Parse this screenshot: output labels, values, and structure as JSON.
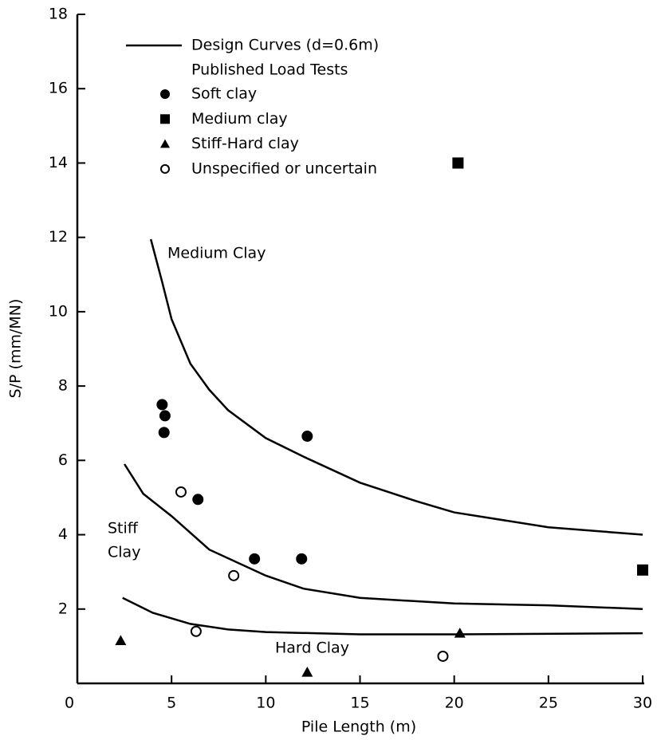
{
  "chart_data": {
    "type": "scatter",
    "x_label": "Pile Length (m)",
    "y_label": "S/P (mm/MN)",
    "xlim": [
      0,
      30
    ],
    "ylim": [
      0,
      18
    ],
    "xticks": [
      0,
      5,
      10,
      15,
      20,
      25,
      30
    ],
    "yticks": [
      2,
      4,
      6,
      8,
      10,
      12,
      14,
      16,
      18
    ],
    "design_curves": {
      "name": "Design Curves (d=0.6m)",
      "color": "#000000",
      "curves": [
        {
          "x": [
            3.9,
            4.5,
            5,
            6,
            7,
            8,
            10,
            12,
            15,
            18,
            20,
            25,
            30
          ],
          "values": [
            11.95,
            10.8,
            9.8,
            8.6,
            7.9,
            7.35,
            6.6,
            6.1,
            5.4,
            4.9,
            4.6,
            4.2,
            4.0
          ]
        },
        {
          "x": [
            2.5,
            3.5,
            5,
            7,
            10,
            12,
            15,
            20,
            25,
            30
          ],
          "values": [
            5.9,
            5.1,
            4.5,
            3.6,
            2.9,
            2.55,
            2.3,
            2.15,
            2.1,
            2.0
          ]
        },
        {
          "x": [
            2.4,
            4,
            6,
            8,
            10,
            15,
            20,
            30
          ],
          "values": [
            2.3,
            1.9,
            1.6,
            1.45,
            1.38,
            1.32,
            1.32,
            1.35
          ]
        }
      ]
    },
    "legend_subtitle": "Published Load Tests",
    "series": [
      {
        "name": "Soft clay",
        "marker": "circle",
        "color": "#000000",
        "x": [
          4.5,
          4.65,
          4.6,
          6.4,
          12.2,
          9.4,
          11.9
        ],
        "values": [
          7.5,
          7.2,
          6.75,
          4.95,
          6.65,
          3.35,
          3.35
        ]
      },
      {
        "name": "Medium clay",
        "marker": "square",
        "color": "#000000",
        "x": [
          20.2,
          30
        ],
        "values": [
          14.0,
          3.05
        ]
      },
      {
        "name": "Stiff-Hard clay",
        "marker": "triangle",
        "color": "#000000",
        "x": [
          2.3,
          12.2,
          20.3
        ],
        "values": [
          1.15,
          0.3,
          1.35
        ]
      },
      {
        "name": "Unspecified or uncertain",
        "marker": "open-circle",
        "color": "#000000",
        "x": [
          5.5,
          8.3,
          6.3,
          19.4
        ],
        "values": [
          5.15,
          2.9,
          1.4,
          0.73
        ]
      }
    ],
    "annotations": [
      "Medium Clay",
      "Stiff",
      "Clay",
      "Hard Clay"
    ]
  }
}
